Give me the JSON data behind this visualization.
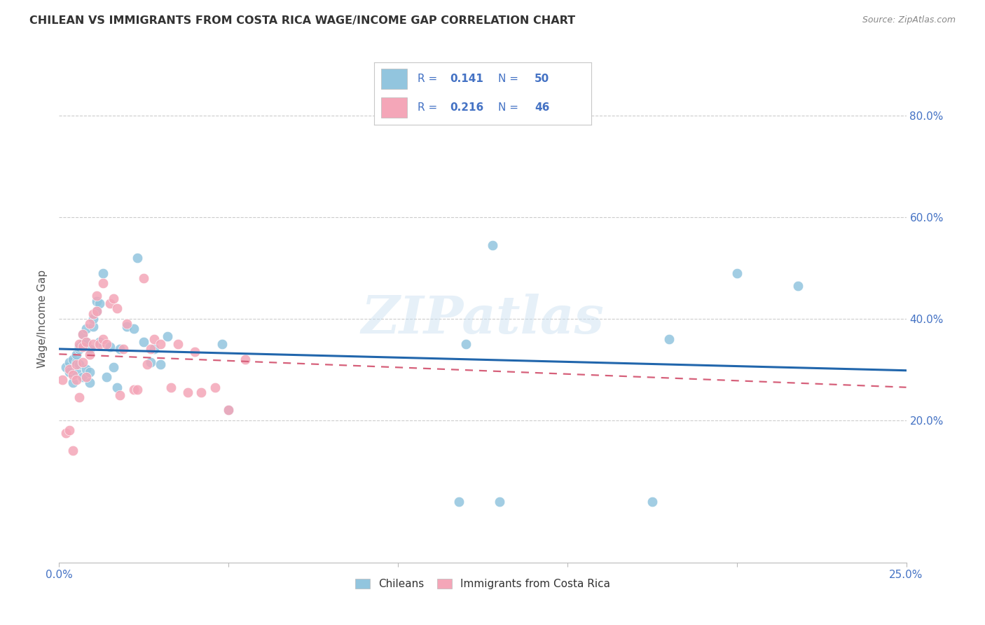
{
  "title": "CHILEAN VS IMMIGRANTS FROM COSTA RICA WAGE/INCOME GAP CORRELATION CHART",
  "source": "Source: ZipAtlas.com",
  "ylabel": "Wage/Income Gap",
  "legend_label1": "Chileans",
  "legend_label2": "Immigrants from Costa Rica",
  "watermark": "ZIPatlas",
  "chileans_color": "#92c5de",
  "immigrants_color": "#f4a6b8",
  "trendline1_color": "#2166ac",
  "trendline2_color": "#d6607a",
  "background_color": "#ffffff",
  "legend_text_color": "#4472c4",
  "xlim": [
    0.0,
    0.25
  ],
  "ylim": [
    -0.08,
    0.88
  ],
  "r1": "0.141",
  "n1": "50",
  "r2": "0.216",
  "n2": "46",
  "chileans_x": [
    0.002,
    0.003,
    0.003,
    0.004,
    0.004,
    0.005,
    0.005,
    0.005,
    0.006,
    0.006,
    0.006,
    0.007,
    0.007,
    0.007,
    0.008,
    0.008,
    0.008,
    0.009,
    0.009,
    0.009,
    0.01,
    0.01,
    0.011,
    0.011,
    0.012,
    0.012,
    0.013,
    0.014,
    0.015,
    0.016,
    0.017,
    0.018,
    0.02,
    0.022,
    0.023,
    0.025,
    0.027,
    0.028,
    0.03,
    0.032,
    0.048,
    0.05,
    0.118,
    0.12,
    0.128,
    0.13,
    0.175,
    0.18,
    0.2,
    0.218
  ],
  "chileans_y": [
    0.305,
    0.295,
    0.315,
    0.32,
    0.275,
    0.315,
    0.295,
    0.33,
    0.31,
    0.34,
    0.345,
    0.35,
    0.37,
    0.285,
    0.355,
    0.3,
    0.38,
    0.295,
    0.34,
    0.275,
    0.385,
    0.4,
    0.415,
    0.435,
    0.43,
    0.355,
    0.49,
    0.285,
    0.345,
    0.305,
    0.265,
    0.34,
    0.385,
    0.38,
    0.52,
    0.355,
    0.315,
    0.34,
    0.31,
    0.365,
    0.35,
    0.22,
    0.04,
    0.35,
    0.545,
    0.04,
    0.04,
    0.36,
    0.49,
    0.465
  ],
  "immigrants_x": [
    0.001,
    0.002,
    0.003,
    0.003,
    0.004,
    0.004,
    0.005,
    0.005,
    0.006,
    0.006,
    0.007,
    0.007,
    0.007,
    0.008,
    0.008,
    0.009,
    0.009,
    0.01,
    0.01,
    0.011,
    0.011,
    0.012,
    0.013,
    0.013,
    0.014,
    0.015,
    0.016,
    0.017,
    0.018,
    0.019,
    0.02,
    0.022,
    0.023,
    0.025,
    0.026,
    0.027,
    0.028,
    0.03,
    0.033,
    0.035,
    0.038,
    0.04,
    0.042,
    0.046,
    0.05,
    0.055
  ],
  "immigrants_y": [
    0.28,
    0.175,
    0.18,
    0.3,
    0.29,
    0.14,
    0.31,
    0.28,
    0.35,
    0.245,
    0.315,
    0.345,
    0.37,
    0.355,
    0.285,
    0.33,
    0.39,
    0.35,
    0.41,
    0.415,
    0.445,
    0.35,
    0.47,
    0.36,
    0.35,
    0.43,
    0.44,
    0.42,
    0.25,
    0.34,
    0.39,
    0.26,
    0.26,
    0.48,
    0.31,
    0.34,
    0.36,
    0.35,
    0.265,
    0.35,
    0.255,
    0.335,
    0.255,
    0.265,
    0.22,
    0.32
  ]
}
